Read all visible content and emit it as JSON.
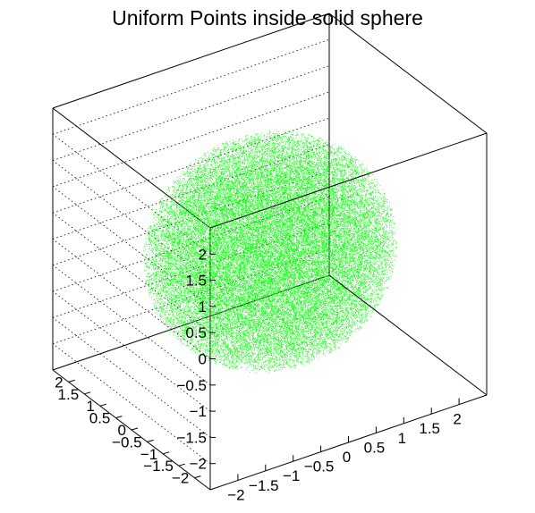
{
  "chart_data": {
    "type": "scatter",
    "title": "Uniform Points inside solid sphere",
    "sphere_radius": 2,
    "point_color": "#00ff00",
    "axis_color": "#000000",
    "background": "#ffffff",
    "x_axis": {
      "range": [
        -2.5,
        2.5
      ],
      "tick_labels": [
        "−2",
        "−1.5",
        "−1",
        "−0.5",
        "0",
        "0.5",
        "1",
        "1.5",
        "2"
      ],
      "tick_values": [
        -2,
        -1.5,
        -1,
        -0.5,
        0,
        0.5,
        1,
        1.5,
        2
      ]
    },
    "y_axis": {
      "range": [
        -2.5,
        2.5
      ],
      "tick_labels": [
        "−2",
        "−1.5",
        "−1",
        "−0.5",
        "0",
        "0.5",
        "1",
        "1.5",
        "2"
      ],
      "tick_values": [
        -2,
        -1.5,
        -1,
        -0.5,
        0,
        0.5,
        1,
        1.5,
        2
      ]
    },
    "z_axis": {
      "range": [
        -2.5,
        2.5
      ],
      "tick_labels": [
        "−2",
        "−1.5",
        "−1",
        "−0.5",
        "0",
        "0.5",
        "1",
        "1.5",
        "2"
      ],
      "tick_values": [
        -2,
        -1.5,
        -1,
        -0.5,
        0,
        0.5,
        1,
        1.5,
        2
      ]
    },
    "grid": true,
    "legend": "none"
  }
}
